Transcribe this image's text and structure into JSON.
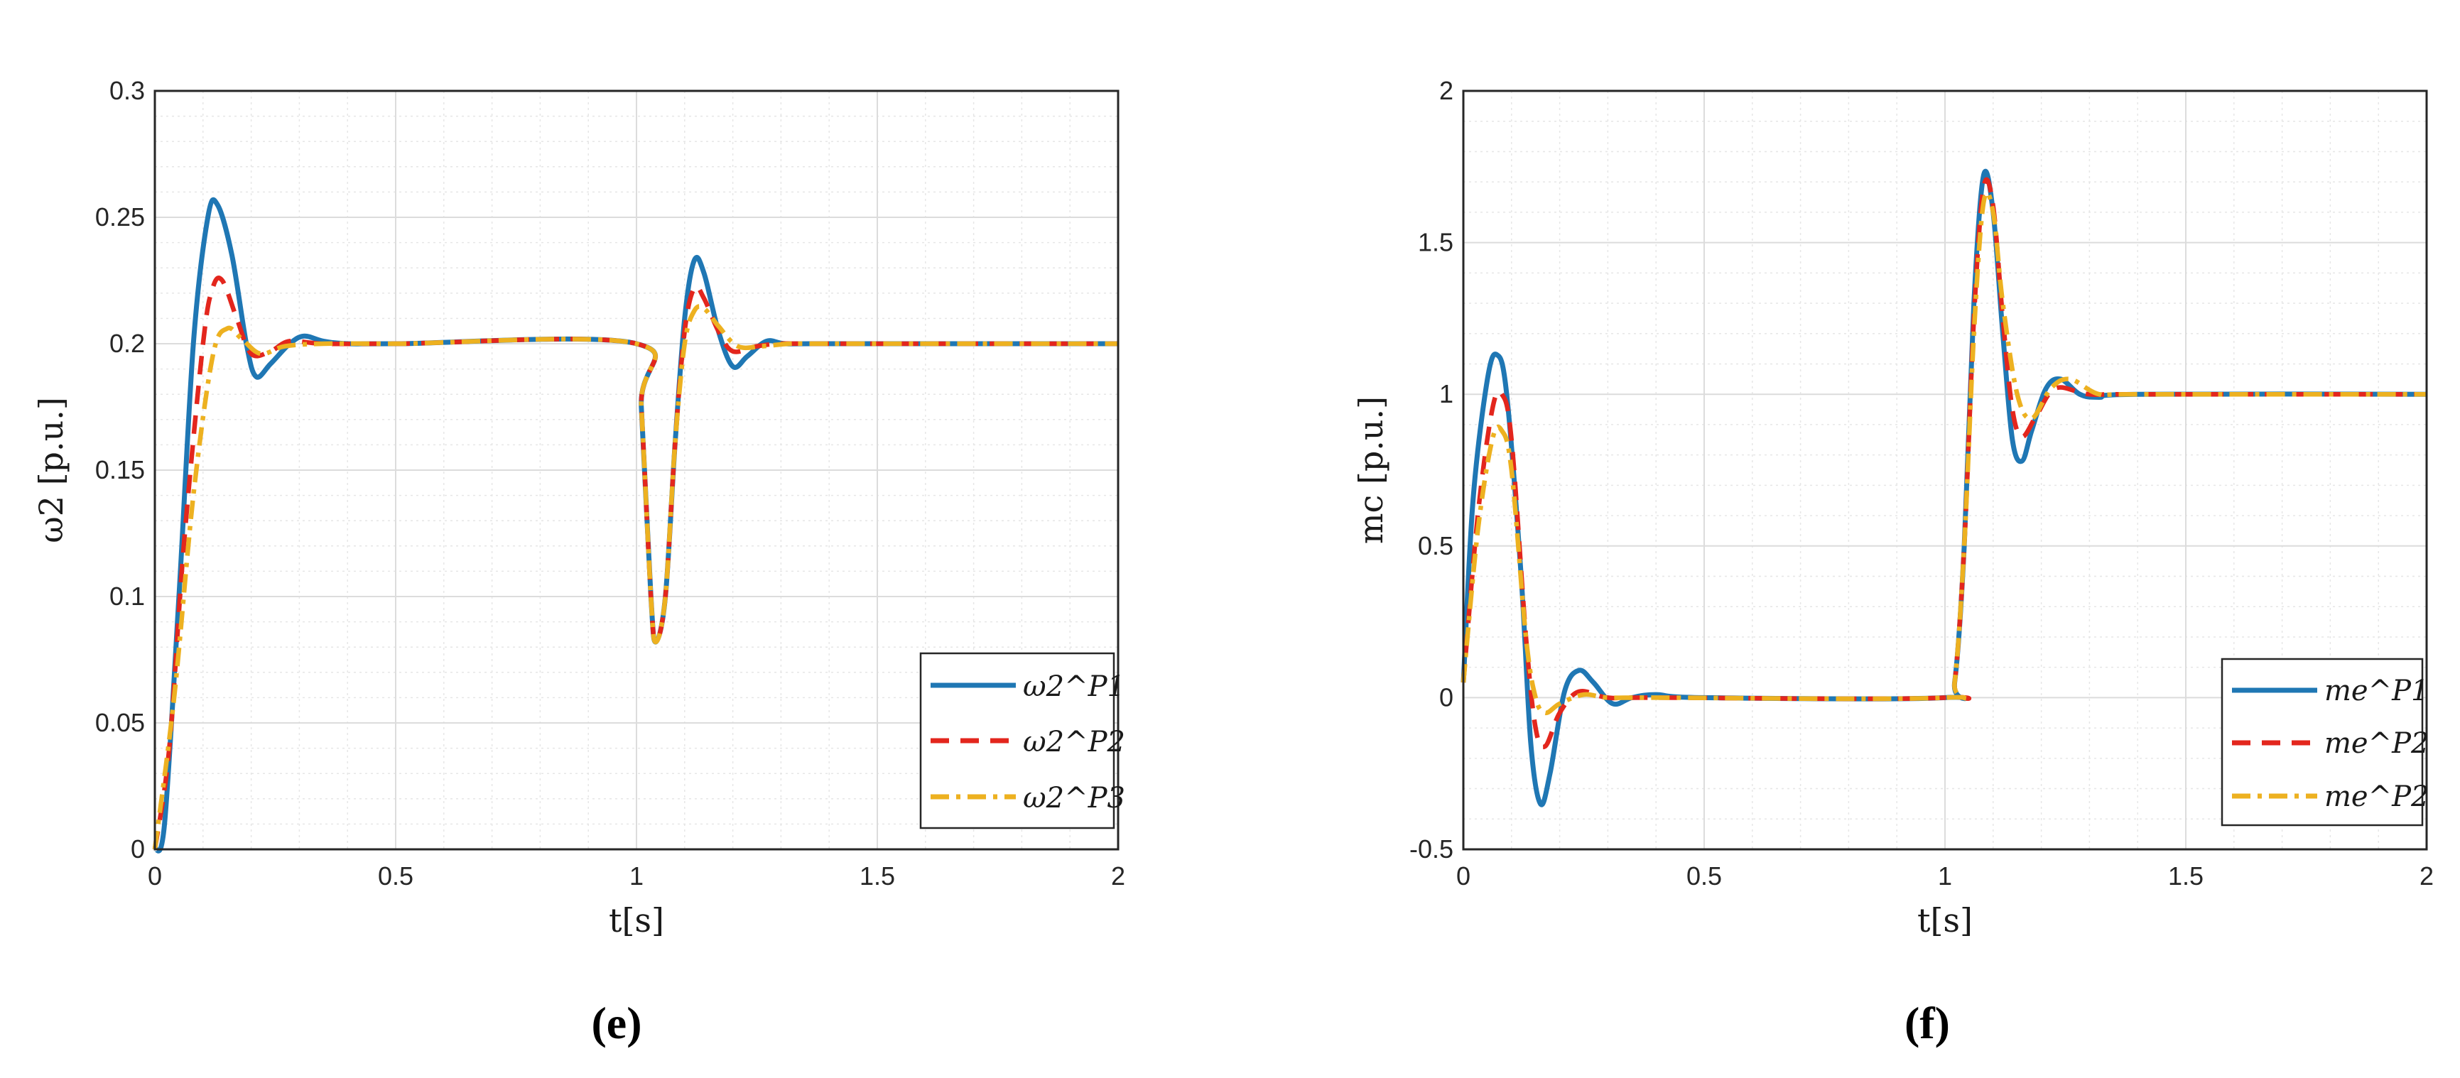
{
  "chart_data": [
    {
      "type": "line",
      "caption": "(e)",
      "xlabel": "t[s]",
      "ylabel": "ω2 [p.u.]",
      "xlim": [
        0,
        2
      ],
      "ylim": [
        0,
        0.3
      ],
      "xticks": [
        "0",
        "0.5",
        "1",
        "1.5",
        "2"
      ],
      "yticks": [
        "0",
        "0.05",
        "0.1",
        "0.15",
        "0.2",
        "0.25",
        "0.3"
      ],
      "grid": true,
      "legend_position": "bottom-right",
      "series": [
        {
          "name": "ω2^P1",
          "color": "#1f77b4",
          "style": "solid",
          "x": [
            0,
            0.02,
            0.05,
            0.08,
            0.11,
            0.13,
            0.16,
            0.19,
            0.21,
            0.24,
            0.28,
            0.31,
            0.35,
            0.4,
            0.5,
            1.0,
            1.01,
            1.03,
            1.04,
            1.06,
            1.08,
            1.1,
            1.12,
            1.14,
            1.17,
            1.2,
            1.23,
            1.27,
            1.31,
            1.4,
            2.0
          ],
          "y": [
            0,
            0.01,
            0.1,
            0.2,
            0.25,
            0.255,
            0.235,
            0.2,
            0.187,
            0.192,
            0.2,
            0.203,
            0.201,
            0.2,
            0.2,
            0.2,
            0.175,
            0.1,
            0.082,
            0.1,
            0.16,
            0.21,
            0.233,
            0.228,
            0.205,
            0.191,
            0.195,
            0.201,
            0.2,
            0.2,
            0.2
          ]
        },
        {
          "name": "ω2^P2",
          "color": "#e3261d",
          "style": "dashed",
          "x": [
            0,
            0.03,
            0.06,
            0.1,
            0.12,
            0.14,
            0.17,
            0.2,
            0.24,
            0.28,
            0.35,
            0.5,
            1.0,
            1.01,
            1.03,
            1.04,
            1.06,
            1.08,
            1.1,
            1.12,
            1.14,
            1.17,
            1.2,
            1.25,
            1.3,
            1.4,
            2.0
          ],
          "y": [
            0,
            0.04,
            0.12,
            0.2,
            0.222,
            0.225,
            0.21,
            0.196,
            0.197,
            0.201,
            0.2,
            0.2,
            0.2,
            0.175,
            0.1,
            0.082,
            0.1,
            0.16,
            0.205,
            0.222,
            0.218,
            0.205,
            0.197,
            0.199,
            0.2,
            0.2,
            0.2
          ]
        },
        {
          "name": "ω2^P3",
          "color": "#edb120",
          "style": "dashdot",
          "x": [
            0,
            0.04,
            0.08,
            0.12,
            0.15,
            0.18,
            0.22,
            0.27,
            0.35,
            0.5,
            1.0,
            1.01,
            1.03,
            1.04,
            1.06,
            1.08,
            1.1,
            1.12,
            1.14,
            1.17,
            1.21,
            1.26,
            1.32,
            1.4,
            2.0
          ],
          "y": [
            0,
            0.06,
            0.14,
            0.195,
            0.206,
            0.202,
            0.196,
            0.199,
            0.2,
            0.2,
            0.2,
            0.175,
            0.1,
            0.082,
            0.1,
            0.16,
            0.2,
            0.213,
            0.214,
            0.207,
            0.199,
            0.199,
            0.2,
            0.2,
            0.2
          ]
        }
      ]
    },
    {
      "type": "line",
      "caption": "(f)",
      "xlabel": "t[s]",
      "ylabel": "mc [p.u.]",
      "xlim": [
        0,
        2
      ],
      "ylim": [
        -0.5,
        2
      ],
      "xticks": [
        "0",
        "0.5",
        "1",
        "1.5",
        "2"
      ],
      "yticks": [
        "-0.5",
        "0",
        "0.5",
        "1",
        "1.5",
        "2"
      ],
      "grid": true,
      "legend_position": "bottom-right",
      "series": [
        {
          "name": "me^P1",
          "color": "#1f77b4",
          "style": "solid",
          "x": [
            0,
            0.02,
            0.05,
            0.07,
            0.09,
            0.12,
            0.14,
            0.16,
            0.18,
            0.21,
            0.24,
            0.27,
            0.31,
            0.35,
            0.4,
            0.5,
            1.0,
            1.02,
            1.04,
            1.06,
            1.08,
            1.1,
            1.12,
            1.14,
            1.16,
            1.18,
            1.21,
            1.24,
            1.28,
            1.32,
            1.4,
            2.0
          ],
          "y": [
            0.05,
            0.65,
            1.05,
            1.13,
            1.0,
            0.4,
            -0.15,
            -0.35,
            -0.25,
            0.02,
            0.09,
            0.05,
            -0.02,
            0.0,
            0.01,
            0.0,
            0.0,
            0.05,
            0.5,
            1.3,
            1.72,
            1.6,
            1.2,
            0.85,
            0.78,
            0.88,
            1.02,
            1.05,
            1.0,
            0.99,
            1.0,
            1.0
          ]
        },
        {
          "name": "me^P2",
          "color": "#e3261d",
          "style": "dashed",
          "x": [
            0,
            0.03,
            0.06,
            0.08,
            0.1,
            0.13,
            0.15,
            0.17,
            0.2,
            0.24,
            0.3,
            0.4,
            1.0,
            1.02,
            1.04,
            1.06,
            1.08,
            1.1,
            1.12,
            1.14,
            1.16,
            1.19,
            1.23,
            1.3,
            1.4,
            2.0
          ],
          "y": [
            0.05,
            0.6,
            0.95,
            1.0,
            0.85,
            0.2,
            -0.1,
            -0.16,
            -0.05,
            0.02,
            0.0,
            0.0,
            0.0,
            0.05,
            0.5,
            1.25,
            1.68,
            1.62,
            1.25,
            0.95,
            0.86,
            0.93,
            1.02,
            1.0,
            1.0,
            1.0
          ]
        },
        {
          "name": "me^P2",
          "color": "#edb120",
          "style": "dashdot",
          "x": [
            0,
            0.03,
            0.06,
            0.08,
            0.1,
            0.13,
            0.15,
            0.17,
            0.2,
            0.25,
            0.3,
            0.4,
            1.0,
            1.02,
            1.04,
            1.06,
            1.08,
            1.1,
            1.12,
            1.15,
            1.18,
            1.22,
            1.26,
            1.32,
            1.4,
            2.0
          ],
          "y": [
            0.05,
            0.55,
            0.85,
            0.88,
            0.75,
            0.2,
            0.0,
            -0.05,
            -0.02,
            0.01,
            0.0,
            0.0,
            0.0,
            0.05,
            0.5,
            1.2,
            1.63,
            1.6,
            1.3,
            1.0,
            0.92,
            1.02,
            1.05,
            1.0,
            1.0,
            1.0
          ]
        }
      ]
    }
  ]
}
